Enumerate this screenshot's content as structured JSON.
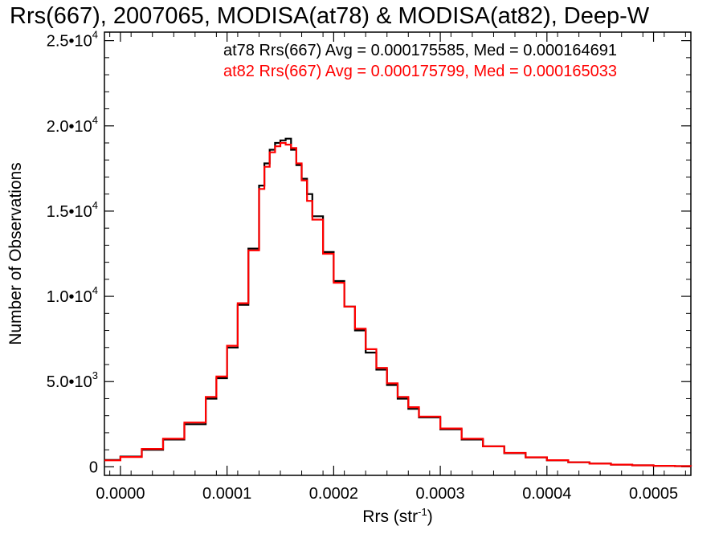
{
  "chart_data": {
    "type": "line",
    "title": "Rrs(667), 2007065, MODISA(at78) & MODISA(at82), Deep-W",
    "xlabel": "Rrs (str",
    "xlabel_sup": "-1",
    "xlabel_suffix": ")",
    "ylabel": "Number of Observations",
    "xlim": [
      -1.5e-05,
      0.000535
    ],
    "ylim": [
      -500,
      25500
    ],
    "xticks": [
      {
        "value": 0.0,
        "label": "0.0000"
      },
      {
        "value": 0.0001,
        "label": "0.0001"
      },
      {
        "value": 0.0002,
        "label": "0.0002"
      },
      {
        "value": 0.0003,
        "label": "0.0003"
      },
      {
        "value": 0.0004,
        "label": "0.0004"
      },
      {
        "value": 0.0005,
        "label": "0.0005"
      }
    ],
    "yticks": [
      {
        "value": 0,
        "label": "0",
        "sup": ""
      },
      {
        "value": 5000,
        "label": "5.0•10",
        "sup": "3"
      },
      {
        "value": 10000,
        "label": "1.0•10",
        "sup": "4"
      },
      {
        "value": 15000,
        "label": "1.5•10",
        "sup": "4"
      },
      {
        "value": 20000,
        "label": "2.0•10",
        "sup": "4"
      },
      {
        "value": 25000,
        "label": "2.5•10",
        "sup": "4"
      }
    ],
    "legend_position": "top-right",
    "x": [
      -1.5e-05,
      0.0,
      2e-05,
      4e-05,
      6e-05,
      8e-05,
      9e-05,
      0.0001,
      0.00011,
      0.00012,
      0.00013,
      0.000135,
      0.00014,
      0.000145,
      0.00015,
      0.000155,
      0.00016,
      0.000165,
      0.00017,
      0.000175,
      0.00018,
      0.00019,
      0.0002,
      0.00021,
      0.00022,
      0.00023,
      0.00024,
      0.00025,
      0.00026,
      0.00027,
      0.00028,
      0.0003,
      0.00032,
      0.00034,
      0.00036,
      0.00038,
      0.0004,
      0.00042,
      0.00044,
      0.00046,
      0.00048,
      0.0005,
      0.00052,
      0.000535
    ],
    "series": [
      {
        "name": "at78",
        "color": "#000000",
        "label": "at78 Rrs(667) Avg = 0.000175585, Med = 0.000164691",
        "values": [
          400,
          600,
          1000,
          1600,
          2500,
          4000,
          5200,
          7000,
          9500,
          12800,
          16500,
          17800,
          18600,
          19000,
          19150,
          19250,
          18600,
          17700,
          16900,
          16000,
          14700,
          12600,
          10900,
          9400,
          8000,
          6700,
          5700,
          4800,
          4000,
          3400,
          2900,
          2200,
          1600,
          1200,
          800,
          550,
          380,
          270,
          190,
          130,
          90,
          60,
          40,
          30
        ]
      },
      {
        "name": "at82",
        "color": "#ff0000",
        "label": "at82 Rrs(667) Avg = 0.000175799, Med = 0.000165033",
        "values": [
          380,
          580,
          1050,
          1650,
          2600,
          4100,
          5300,
          7100,
          9600,
          12700,
          16300,
          17600,
          18450,
          18800,
          19000,
          18900,
          18700,
          17800,
          16800,
          15600,
          14500,
          12500,
          10800,
          9400,
          8100,
          6900,
          5800,
          4900,
          4100,
          3500,
          2950,
          2250,
          1650,
          1200,
          820,
          560,
          390,
          270,
          190,
          130,
          90,
          60,
          40,
          30
        ]
      }
    ]
  }
}
